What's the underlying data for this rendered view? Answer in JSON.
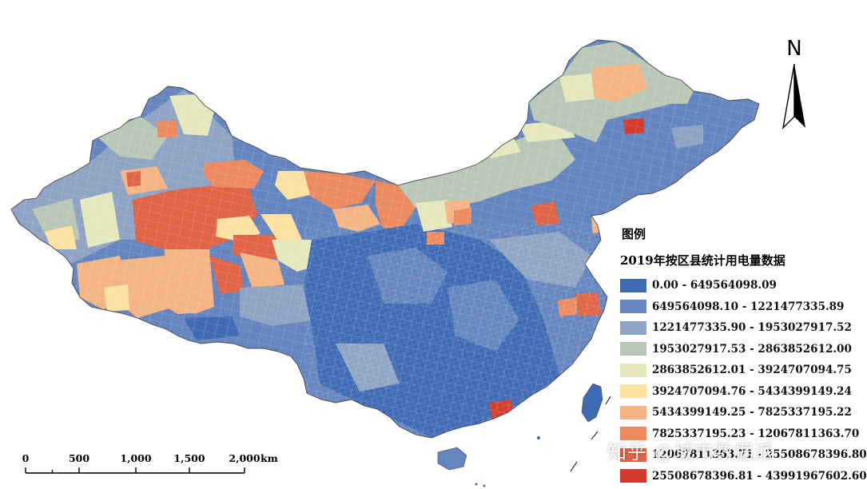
{
  "legend": {
    "heading": "图例",
    "subtitle": "2019年按区县统计用电量数据",
    "classes": [
      {
        "label": "0.00 - 649564098.09",
        "color": "#3f6bb5"
      },
      {
        "label": "649564098.10 - 1221477335.89",
        "color": "#6585bf"
      },
      {
        "label": "1221477335.90 - 1953027917.52",
        "color": "#8fa3c4"
      },
      {
        "label": "1953027917.53 - 2863852612.00",
        "color": "#b9c7b7"
      },
      {
        "label": "2863852612.01 - 3924707094.75",
        "color": "#e5e8bd"
      },
      {
        "label": "3924707094.76 - 5434399149.24",
        "color": "#fbe2a3"
      },
      {
        "label": "5434399149.25 - 7825337195.22",
        "color": "#f4b483"
      },
      {
        "label": "7825337195.23 - 12067811363.70",
        "color": "#ec8a5f"
      },
      {
        "label": "12067811363.71 - 25508678396.80",
        "color": "#e06446"
      },
      {
        "label": "25508678396.81 - 43991967602.60",
        "color": "#d43b2a"
      }
    ]
  },
  "north_arrow": {
    "letter": "N"
  },
  "scale_bar": {
    "ticks": [
      "0",
      "500",
      "1,000",
      "1,500",
      "2,000"
    ],
    "unit": "km"
  },
  "watermark": "知乎 @城市数据派"
}
